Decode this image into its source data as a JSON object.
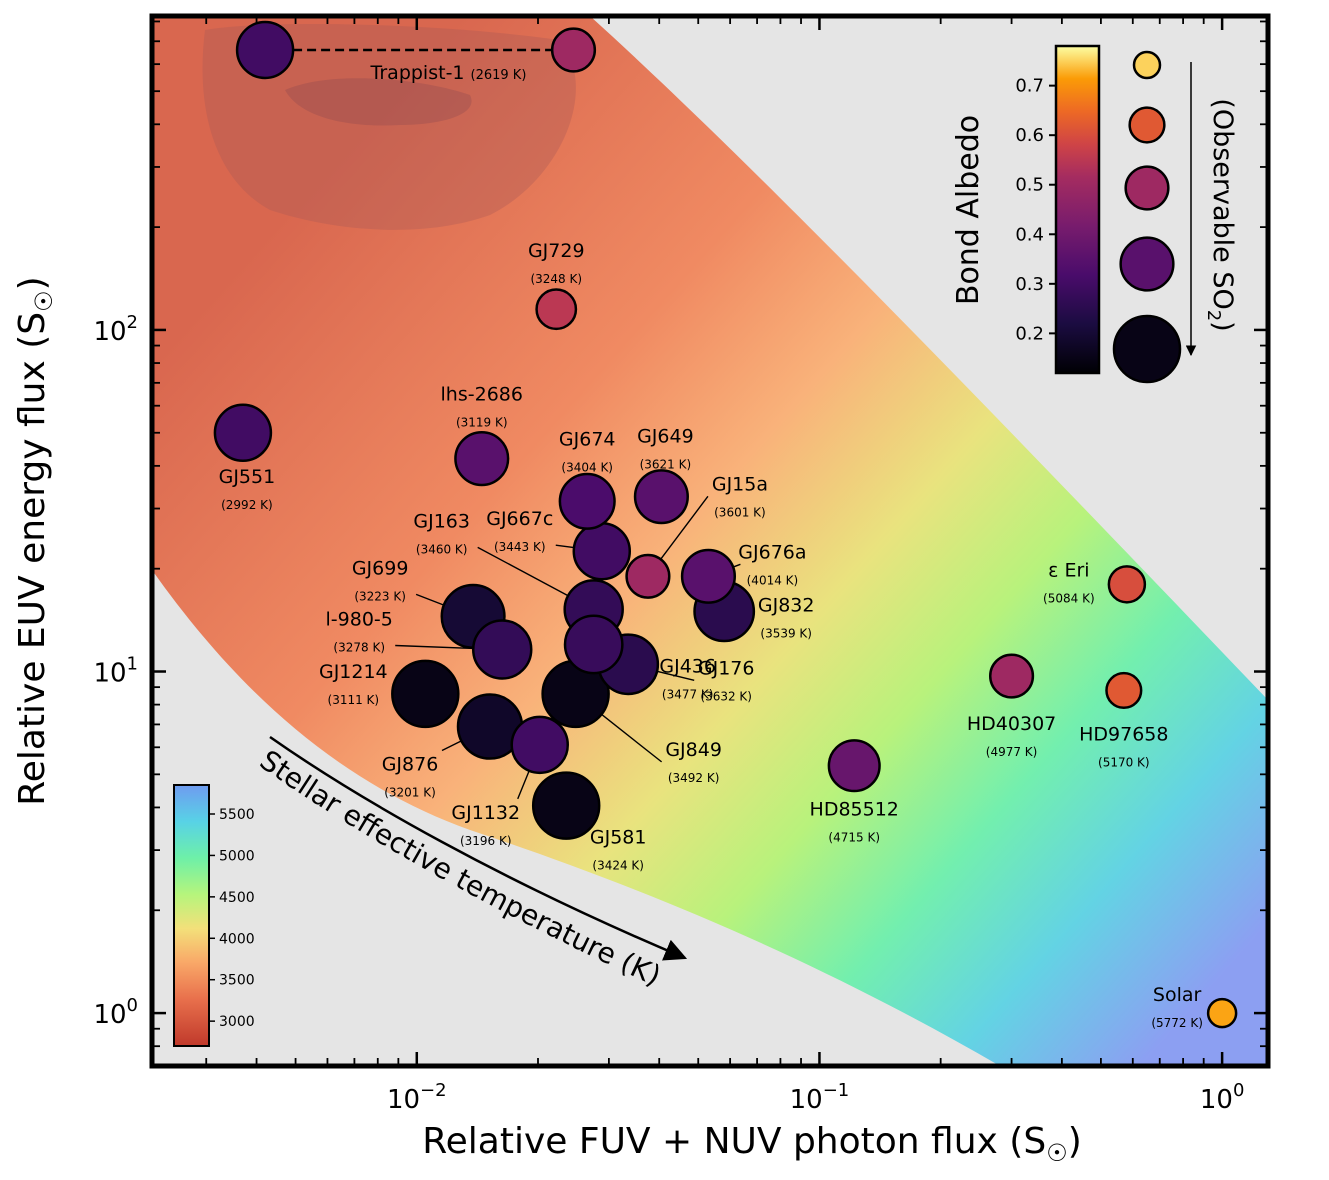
{
  "chart_data": {
    "type": "scatter",
    "xscale": "log",
    "yscale": "log",
    "xlim": [
      0.0022,
      1.3
    ],
    "ylim": [
      0.7,
      830
    ],
    "xlabel": "Relative FUV + NUV photon flux (S",
    "ylabel": "Relative EUV energy flux (S",
    "sun_symbol": "☉",
    "x_ticks": [
      {
        "value": 0.01,
        "base": "10",
        "exp": "−2"
      },
      {
        "value": 0.1,
        "base": "10",
        "exp": "−1"
      },
      {
        "value": 1,
        "base": "10",
        "exp": "0"
      }
    ],
    "y_ticks": [
      {
        "value": 1,
        "base": "10",
        "exp": "0"
      },
      {
        "value": 10,
        "base": "10",
        "exp": "1"
      },
      {
        "value": 100,
        "base": "10",
        "exp": "2"
      }
    ],
    "stars": [
      {
        "name": "Trappist-1",
        "temp": "(2619 K)",
        "x": 0.0245,
        "y": 660,
        "albedo": 0.5
      },
      {
        "name": "Trappist-1",
        "temp": "",
        "x": 0.0042,
        "y": 660,
        "albedo": 0.3
      },
      {
        "name": "GJ729",
        "temp": "(3248 K)",
        "x": 0.0222,
        "y": 115,
        "albedo": 0.55
      },
      {
        "name": "GJ551",
        "temp": "(2992 K)",
        "x": 0.0037,
        "y": 50,
        "albedo": 0.3
      },
      {
        "name": "lhs-2686",
        "temp": "(3119 K)",
        "x": 0.0145,
        "y": 42,
        "albedo": 0.35
      },
      {
        "name": "GJ674",
        "temp": "(3404 K)",
        "x": 0.0265,
        "y": 31.5,
        "albedo": 0.32
      },
      {
        "name": "GJ649",
        "temp": "(3621 K)",
        "x": 0.0405,
        "y": 32.5,
        "albedo": 0.35
      },
      {
        "name": "GJ15a",
        "temp": "(3601 K)",
        "x": 0.0375,
        "y": 19,
        "albedo": 0.5
      },
      {
        "name": "GJ667c",
        "temp": "(3443 K)",
        "x": 0.0288,
        "y": 22.5,
        "albedo": 0.3
      },
      {
        "name": "GJ676a",
        "temp": "(4014 K)",
        "x": 0.053,
        "y": 19,
        "albedo": 0.35
      },
      {
        "name": "GJ832",
        "temp": "(3539 K)",
        "x": 0.058,
        "y": 15,
        "albedo": 0.25
      },
      {
        "name": "GJ163",
        "temp": "(3460 K)",
        "x": 0.0275,
        "y": 15.2,
        "albedo": 0.27
      },
      {
        "name": "GJ699",
        "temp": "(3223 K)",
        "x": 0.0138,
        "y": 14.5,
        "albedo": 0.2
      },
      {
        "name": "l-980-5",
        "temp": "(3278 K)",
        "x": 0.0163,
        "y": 11.6,
        "albedo": 0.27
      },
      {
        "name": "GJ176",
        "temp": "(3632 K)",
        "x": 0.0335,
        "y": 10.5,
        "albedo": 0.25
      },
      {
        "name": "GJ436",
        "temp": "(3477 K)",
        "x": 0.0275,
        "y": 12,
        "albedo": 0.28
      },
      {
        "name": "GJ849",
        "temp": "(3492 K)",
        "x": 0.0248,
        "y": 8.6,
        "albedo": 0.15
      },
      {
        "name": "GJ1214",
        "temp": "(3111 K)",
        "x": 0.0105,
        "y": 8.6,
        "albedo": 0.15
      },
      {
        "name": "GJ876",
        "temp": "(3201 K)",
        "x": 0.0152,
        "y": 6.9,
        "albedo": 0.18
      },
      {
        "name": "GJ1132",
        "temp": "(3196 K)",
        "x": 0.0202,
        "y": 6.1,
        "albedo": 0.3
      },
      {
        "name": "GJ581",
        "temp": "(3424 K)",
        "x": 0.0235,
        "y": 4.05,
        "albedo": 0.15
      },
      {
        "name": "HD85512",
        "temp": "(4715 K)",
        "x": 0.122,
        "y": 5.3,
        "albedo": 0.38
      },
      {
        "name": "HD40307",
        "temp": "(4977 K)",
        "x": 0.3,
        "y": 9.7,
        "albedo": 0.5
      },
      {
        "name": "ε Eri",
        "temp": "(5084 K)",
        "x": 0.58,
        "y": 18,
        "albedo": 0.6
      },
      {
        "name": "HD97658",
        "temp": "(5170 K)",
        "x": 0.57,
        "y": 8.8,
        "albedo": 0.62
      },
      {
        "name": "Solar",
        "temp": "(5772 K)",
        "x": 1.0,
        "y": 1.0,
        "albedo": 0.72
      }
    ],
    "albedo_colorbar": {
      "label": "Bond Albedo",
      "range": [
        0.12,
        0.78
      ],
      "ticks": [
        "0.2",
        "0.3",
        "0.4",
        "0.5",
        "0.6",
        "0.7"
      ]
    },
    "size_legend": {
      "label": "(Observable SO",
      "label_sub": "2",
      "label_end": ")",
      "albedo_values": [
        0.75,
        0.62,
        0.5,
        0.35,
        0.15
      ]
    },
    "temperature_colorbar": {
      "ticks": [
        "3000",
        "3500",
        "4000",
        "4500",
        "5000",
        "5500"
      ],
      "range": [
        2700,
        5850
      ]
    },
    "annotation": "Stellar effective temperature (K)"
  }
}
